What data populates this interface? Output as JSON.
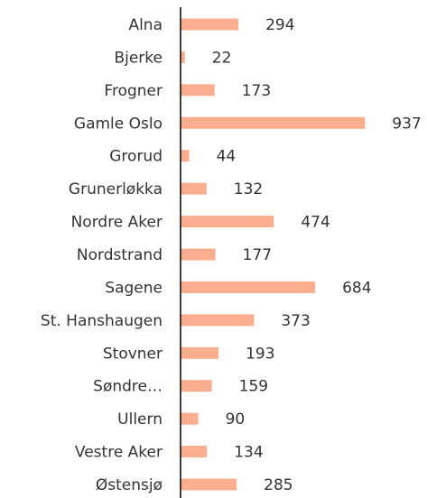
{
  "chart_data": {
    "type": "bar",
    "orientation": "horizontal",
    "categories": [
      "Alna",
      "Bjerke",
      "Frogner",
      "Gamle Oslo",
      "Grorud",
      "Grunerløkka",
      "Nordre Aker",
      "Nordstrand",
      "Sagene",
      "St. Hanshaugen",
      "Stovner",
      "Søndre…",
      "Ullern",
      "Vestre Aker",
      "Østensjø"
    ],
    "values": [
      294,
      22,
      173,
      937,
      44,
      132,
      474,
      177,
      684,
      373,
      193,
      159,
      90,
      134,
      285
    ],
    "color": "#fbae8f",
    "xlim": [
      0,
      1000
    ]
  }
}
